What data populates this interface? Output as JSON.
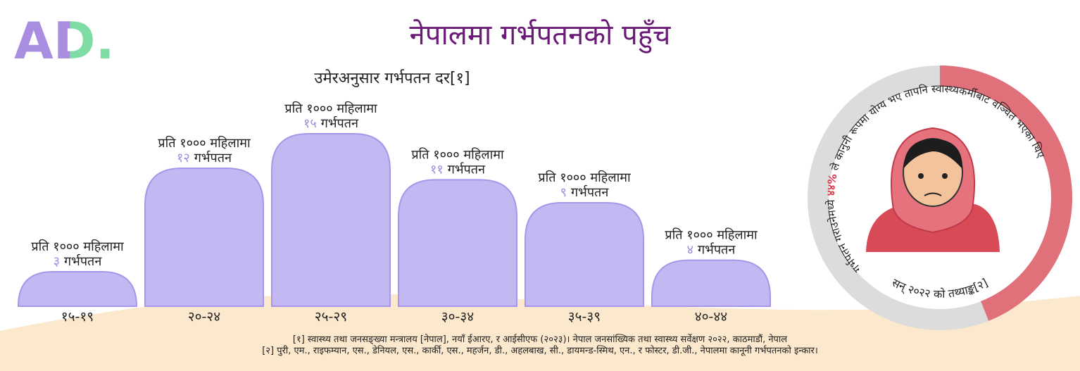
{
  "logo": "AD.",
  "title": "नेपालमा गर्भपतनको पहुँच",
  "chart_data": [
    {
      "type": "bar",
      "title": "उमेरअनुसार गर्भपतन दर[१]",
      "categories": [
        "१५-१९",
        "२०-२४",
        "२५-२९",
        "३०-३४",
        "३५-३९",
        "४०-४४"
      ],
      "values": [
        3,
        12,
        15,
        11,
        9,
        4
      ],
      "value_labels": [
        "३",
        "१२",
        "१५",
        "११",
        "९",
        "४"
      ],
      "label_prefix": "प्रति १००० महिलामा",
      "label_suffix": "गर्भपतन",
      "color": "#c3b9f2"
    },
    {
      "type": "donut",
      "values": [
        44
      ],
      "value_labels": [
        "४४%"
      ],
      "text_before": "गर्भपतन गराउनेमध्ये",
      "text_after": "ले कानुनी रूपमा योग्य भए तापनि स्वास्थ्यकर्मीबाट वञ्चित भएका थिए",
      "note": "सन् २०२२ को तथ्याङ्क[२]",
      "color": "#e0707a"
    }
  ],
  "footnotes": [
    "[१] स्वास्थ्य तथा जनसङ्ख्या मन्त्रालय [नेपाल], नयाँ ईआरए, र आईसीएफ (२०२३)। नेपाल जनसांख्यिक तथा स्वास्थ्य सर्वेक्षण २०२२, काठमाडौं, नेपाल",
    "[२] पुरी, एम., राइफम्यान, एस., डेनियल, एस., कार्की, एस., महर्जन, डी., अहलबाख, सी., डायमन्ड-स्मिथ, एन., र फोस्टर, डी.जी., नेपालमा कानूनी गर्भपतनको इन्कार।"
  ]
}
